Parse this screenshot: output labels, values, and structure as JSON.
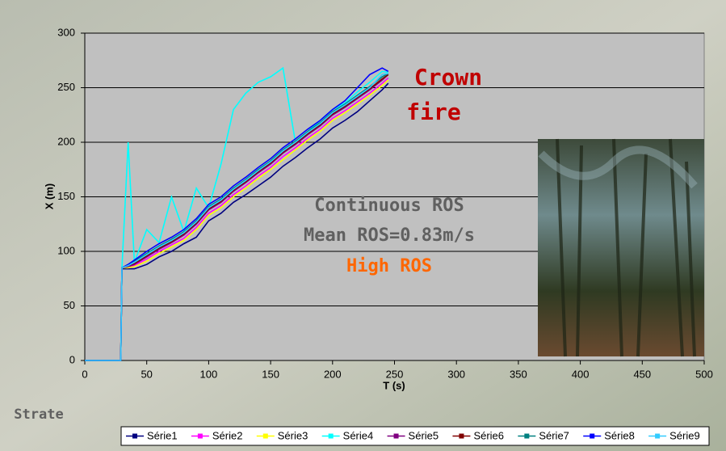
{
  "chart_data": {
    "type": "line",
    "xlabel": "T (s)",
    "ylabel": "X (m)",
    "annotations": [
      "Crown",
      "fire",
      "Continuous ROS",
      "Mean ROS=0.83m/s",
      "High ROS",
      "Strate"
    ],
    "xlim": [
      0,
      500
    ],
    "xticks": [
      0,
      50,
      100,
      150,
      200,
      250,
      300,
      350,
      400,
      450,
      500
    ],
    "ylim": [
      0,
      300
    ],
    "yticks": [
      0,
      50,
      100,
      150,
      200,
      250,
      300
    ],
    "grid": true,
    "legend": "bottom",
    "x": [
      0,
      10,
      20,
      29,
      30,
      35,
      40,
      50,
      60,
      70,
      80,
      90,
      100,
      110,
      120,
      130,
      140,
      150,
      160,
      170,
      180,
      190,
      200,
      210,
      220,
      230,
      240,
      245
    ],
    "series": [
      {
        "name": "Série1",
        "color": "#000080",
        "values": [
          0,
          0,
          0,
          0,
          84,
          84,
          84,
          88,
          95,
          100,
          107,
          113,
          128,
          135,
          145,
          152,
          160,
          168,
          178,
          186,
          195,
          203,
          213,
          220,
          228,
          238,
          248,
          254
        ]
      },
      {
        "name": "Série2",
        "color": "#ff00ff",
        "values": [
          0,
          0,
          0,
          0,
          85,
          86,
          87,
          93,
          100,
          106,
          112,
          122,
          135,
          142,
          152,
          160,
          169,
          177,
          187,
          195,
          204,
          212,
          222,
          229,
          237,
          245,
          254,
          259
        ]
      },
      {
        "name": "Série3",
        "color": "#ffff00",
        "values": [
          0,
          0,
          0,
          0,
          85,
          85,
          86,
          91,
          98,
          104,
          110,
          120,
          133,
          140,
          150,
          158,
          167,
          175,
          184,
          193,
          202,
          210,
          220,
          227,
          235,
          243,
          252,
          257
        ]
      },
      {
        "name": "Série4",
        "color": "#00ffff",
        "values": [
          0,
          0,
          0,
          0,
          85,
          200,
          90,
          120,
          108,
          150,
          118,
          158,
          140,
          180,
          230,
          245,
          255,
          260,
          268,
          200,
          210,
          220,
          230,
          236,
          246,
          255,
          265,
          264
        ]
      },
      {
        "name": "Série5",
        "color": "#800080",
        "values": [
          0,
          0,
          0,
          0,
          85,
          86,
          88,
          95,
          102,
          108,
          115,
          125,
          138,
          145,
          155,
          163,
          172,
          180,
          190,
          198,
          207,
          215,
          225,
          232,
          240,
          248,
          257,
          262
        ]
      },
      {
        "name": "Série6",
        "color": "#800000",
        "values": [
          0,
          0,
          0,
          0,
          85,
          87,
          89,
          96,
          103,
          109,
          116,
          126,
          139,
          146,
          156,
          164,
          173,
          181,
          191,
          199,
          208,
          216,
          226,
          233,
          241,
          249,
          258,
          262
        ]
      },
      {
        "name": "Série7",
        "color": "#008080",
        "values": [
          0,
          0,
          0,
          0,
          85,
          88,
          91,
          98,
          105,
          111,
          118,
          128,
          141,
          148,
          158,
          166,
          175,
          183,
          193,
          201,
          210,
          218,
          228,
          235,
          243,
          251,
          260,
          263
        ]
      },
      {
        "name": "Série8",
        "color": "#0000ff",
        "values": [
          0,
          0,
          0,
          0,
          85,
          88,
          92,
          100,
          107,
          113,
          120,
          130,
          143,
          150,
          160,
          168,
          177,
          185,
          195,
          203,
          212,
          220,
          230,
          238,
          250,
          262,
          268,
          265
        ]
      },
      {
        "name": "Série9",
        "color": "#33ccff",
        "values": [
          0,
          0,
          0,
          0,
          85,
          87,
          90,
          97,
          104,
          110,
          117,
          127,
          140,
          147,
          157,
          165,
          174,
          182,
          192,
          200,
          209,
          217,
          227,
          234,
          242,
          250,
          262,
          263
        ]
      }
    ]
  }
}
